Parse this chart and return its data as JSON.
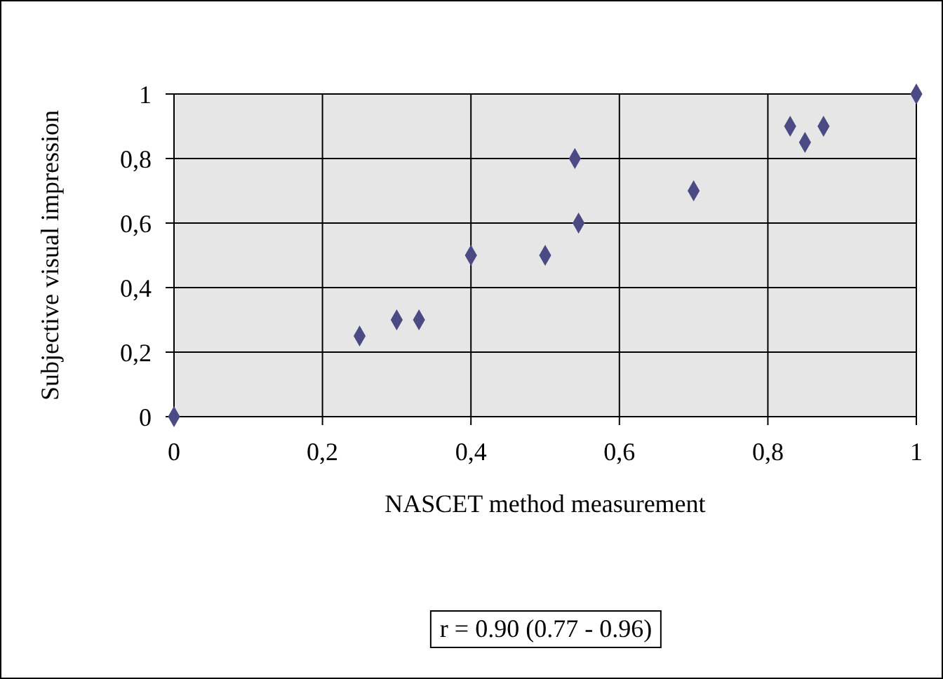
{
  "chart_data": {
    "type": "scatter",
    "xlabel": "NASCET method measurement",
    "ylabel": "Subjective visual impression",
    "x": [
      0,
      0.25,
      0.3,
      0.33,
      0.4,
      0.5,
      0.54,
      0.545,
      0.7,
      0.83,
      0.85,
      0.875,
      1
    ],
    "values": [
      0,
      0.25,
      0.3,
      0.3,
      0.5,
      0.5,
      0.8,
      0.6,
      0.7,
      0.9,
      0.85,
      0.9,
      1
    ],
    "color": "#4b4a84",
    "marker": "diamond",
    "grid": true,
    "legend": false,
    "xlim": [
      0,
      1
    ],
    "ylim": [
      0,
      1
    ],
    "xticks": [
      0,
      {
        "value": 0.2,
        "label": "0,2"
      },
      {
        "value": 0.4,
        "label": "0,4"
      },
      {
        "value": 0.6,
        "label": "0,6"
      },
      {
        "value": 0.8,
        "label": "0,8"
      },
      1
    ],
    "yticks": [
      0,
      {
        "value": 0.2,
        "label": "0,2"
      },
      {
        "value": 0.4,
        "label": "0,4"
      },
      {
        "value": 0.6,
        "label": "0,6"
      },
      {
        "value": 0.8,
        "label": "0,8"
      },
      1
    ],
    "annotations": [
      "r = 0.90 (0.77 - 0.96)"
    ]
  }
}
